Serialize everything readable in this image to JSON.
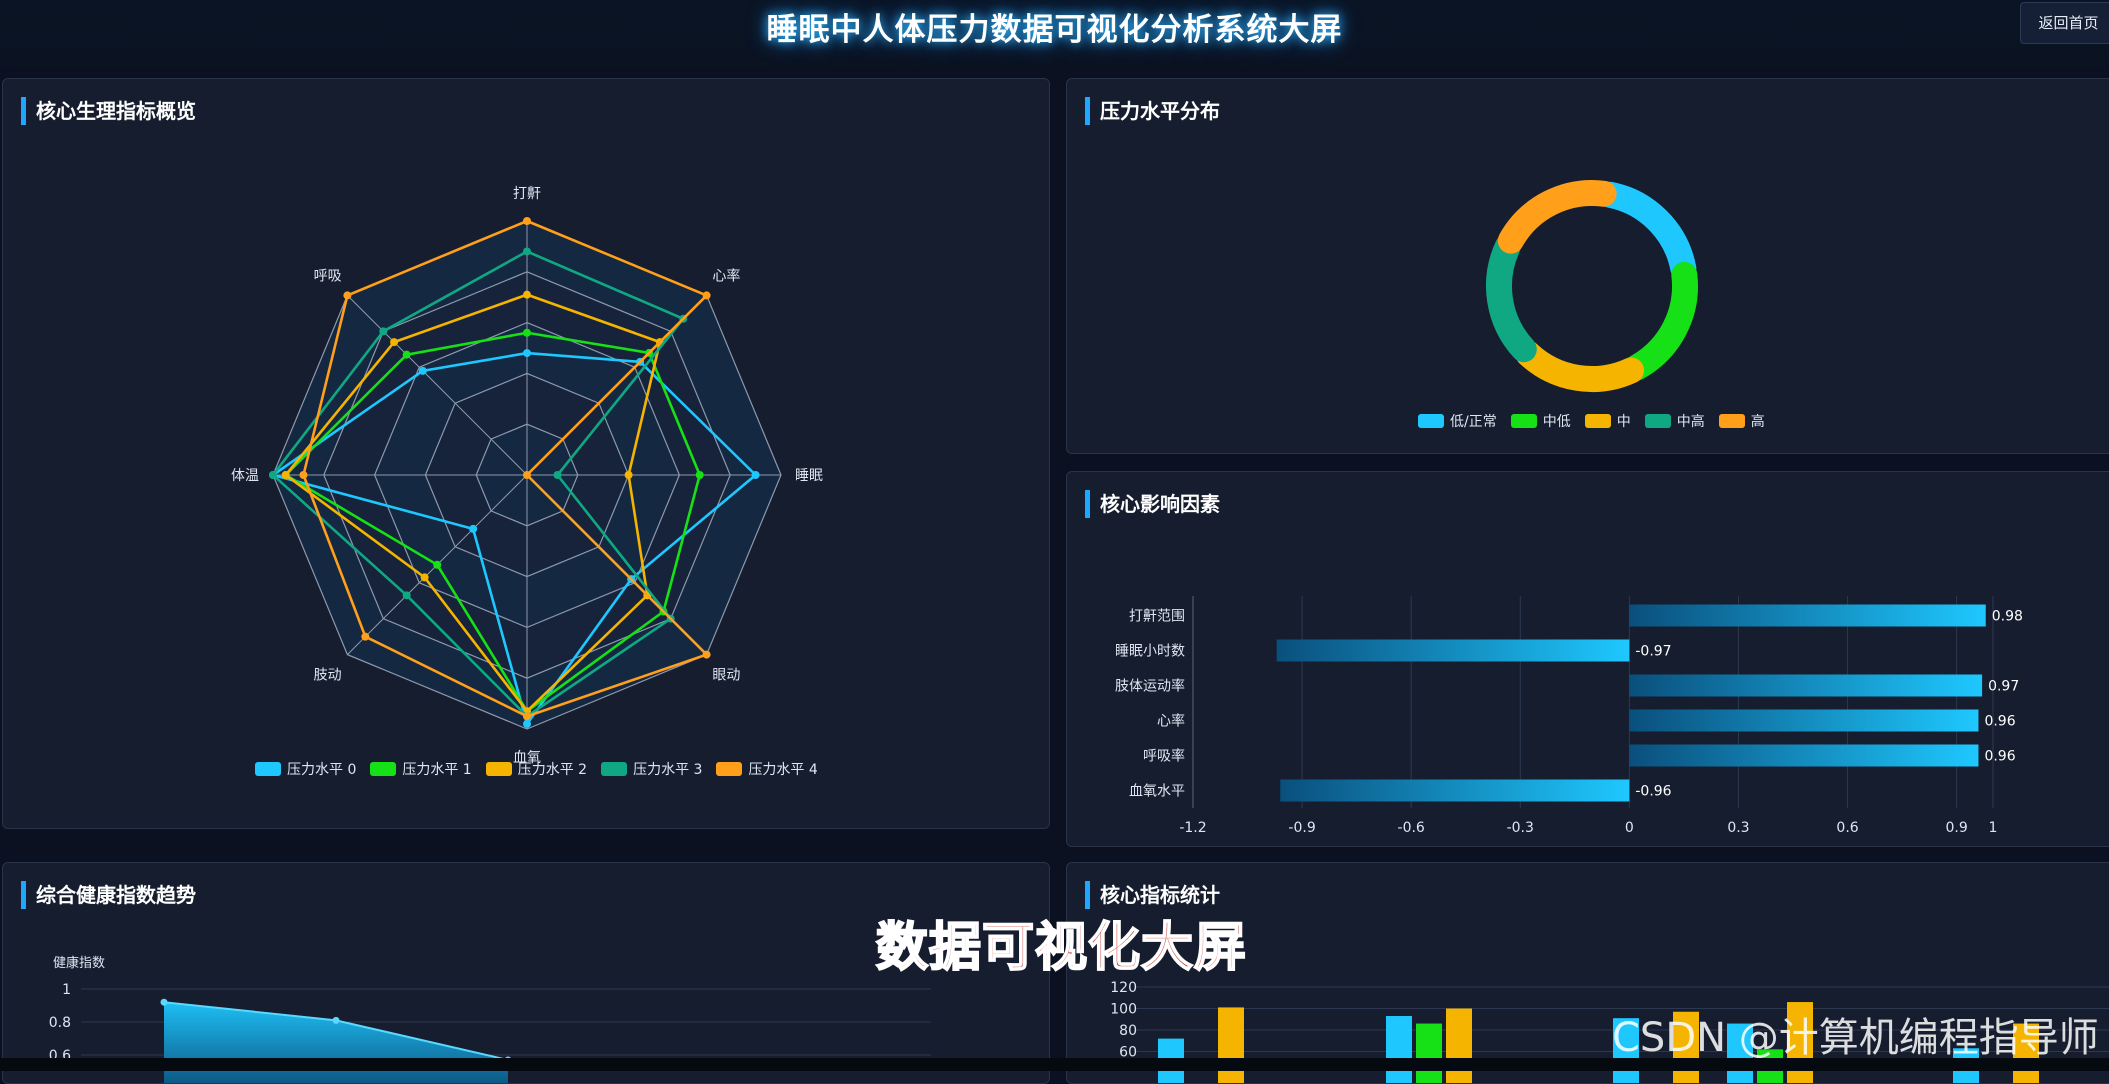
{
  "header": {
    "title": "睡眠中人体压力数据可视化分析系统大屏",
    "home_label": "返回首页"
  },
  "panels": {
    "radar": {
      "title": "核心生理指标概览"
    },
    "donut": {
      "title": "压力水平分布"
    },
    "factors": {
      "title": "核心影响因素"
    },
    "trend": {
      "title": "综合健康指数趋势"
    },
    "stats": {
      "title": "核心指标统计"
    }
  },
  "overlay": {
    "caption": "数据可视化大屏",
    "watermark": "CSDN @计算机编程指导师"
  },
  "chart_data": [
    {
      "type": "radar",
      "indicators": [
        "打鼾",
        "心率",
        "睡眠",
        "眼动",
        "血氧",
        "肢动",
        "体温",
        "呼吸"
      ],
      "series": [
        {
          "name": "压力水平 0",
          "color": "#1ec8ff",
          "values": [
            0.48,
            0.63,
            0.9,
            0.58,
            0.98,
            0.3,
            1.0,
            0.58
          ]
        },
        {
          "name": "压力水平 1",
          "color": "#16e016",
          "values": [
            0.56,
            0.68,
            0.68,
            0.76,
            0.93,
            0.5,
            0.95,
            0.67
          ]
        },
        {
          "name": "压力水平 2",
          "color": "#f4b400",
          "values": [
            0.71,
            0.74,
            0.4,
            0.67,
            0.93,
            0.57,
            0.95,
            0.74
          ]
        },
        {
          "name": "压力水平 3",
          "color": "#0fa882",
          "values": [
            0.88,
            0.87,
            0.12,
            0.8,
            0.95,
            0.67,
            1.0,
            0.8
          ]
        },
        {
          "name": "压力水平 4",
          "color": "#ff9f1a",
          "values": [
            1.0,
            1.0,
            0.0,
            1.0,
            0.95,
            0.9,
            0.88,
            1.0
          ]
        }
      ]
    },
    {
      "type": "pie",
      "categories": [
        "低/正常",
        "中低",
        "中",
        "中高",
        "高"
      ],
      "values": [
        20,
        20,
        20,
        20,
        20
      ],
      "colors": [
        "#1ec8ff",
        "#16e016",
        "#f4b400",
        "#0fa882",
        "#ff9f1a"
      ]
    },
    {
      "type": "bar",
      "orientation": "horizontal",
      "categories": [
        "打鼾范围",
        "睡眠小时数",
        "肢体运动率",
        "心率",
        "呼吸率",
        "血氧水平"
      ],
      "values": [
        0.98,
        -0.97,
        0.97,
        0.96,
        0.96,
        -0.96
      ],
      "data_labels": [
        "0.98",
        "-0.97",
        "0.97",
        "0.96",
        "0.96",
        "-0.96"
      ],
      "xlim": [
        -1.2,
        1
      ],
      "xticks": [
        "-1.2",
        "-0.9",
        "-0.6",
        "-0.3",
        "0",
        "0.3",
        "0.6",
        "0.9",
        "1"
      ]
    },
    {
      "type": "area",
      "ylabel": "健康指数",
      "yticks": [
        "1",
        "0.8",
        "0.6"
      ],
      "values": [
        0.92,
        0.81,
        0.57
      ]
    },
    {
      "type": "bar",
      "yticks": [
        "120",
        "100",
        "80",
        "60"
      ],
      "groups": [
        {
          "values": [
            72,
            0,
            101
          ]
        },
        {
          "values": [
            93,
            86,
            100
          ]
        },
        {
          "values": [
            91,
            0,
            97
          ]
        },
        {
          "values": [
            86,
            62,
            106
          ]
        },
        {
          "values": [
            63,
            0,
            86
          ]
        }
      ],
      "colors": [
        "#1ec8ff",
        "#16e016",
        "#f4b400"
      ]
    }
  ]
}
